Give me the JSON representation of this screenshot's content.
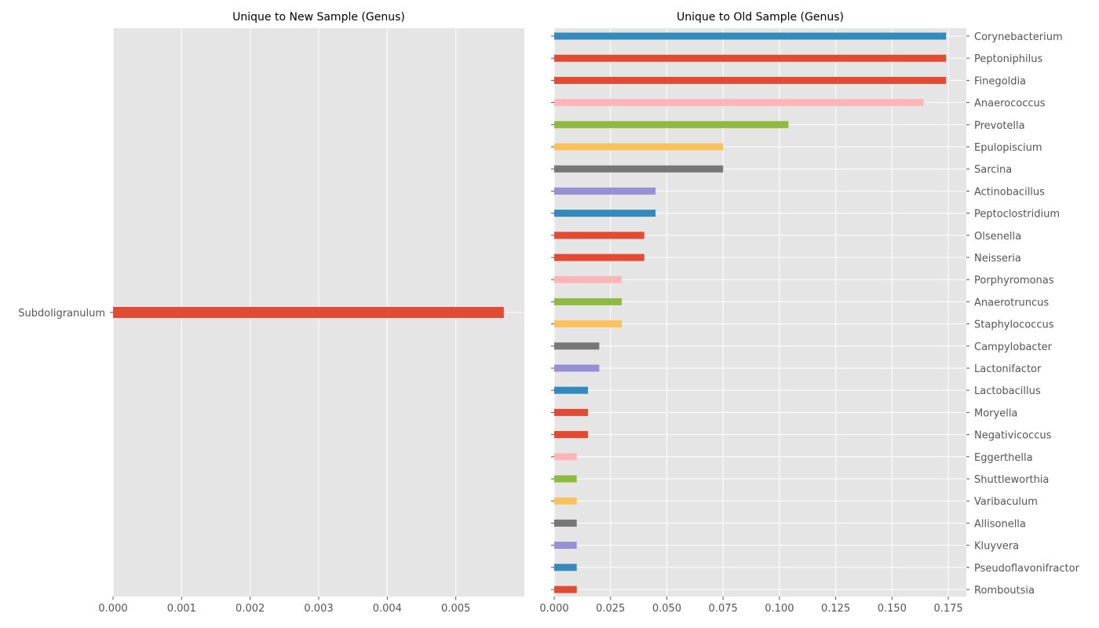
{
  "colors": {
    "panel_bg": "#E5E5E5",
    "grid": "#FFFFFF",
    "tick_text": "#555555",
    "palette": [
      "#E24A33",
      "#348ABD",
      "#988ED5",
      "#777777",
      "#FBC15E",
      "#8EBA42",
      "#FFB5B8"
    ]
  },
  "chart_data": [
    {
      "type": "bar",
      "orientation": "horizontal",
      "title": "Unique to New Sample (Genus)",
      "xlabel": "",
      "ylabel": "",
      "xlim": [
        0,
        0.006
      ],
      "xticks": [
        "0.000",
        "0.001",
        "0.002",
        "0.003",
        "0.004",
        "0.005"
      ],
      "ytick_side": "left",
      "grid": true,
      "categories": [
        "Subdoligranulum"
      ],
      "values": [
        0.0057
      ],
      "bar_colors": [
        "#E24A33"
      ]
    },
    {
      "type": "bar",
      "orientation": "horizontal",
      "title": "Unique to Old Sample (Genus)",
      "xlabel": "",
      "ylabel": "",
      "xlim": [
        0,
        0.183
      ],
      "xticks": [
        "0.000",
        "0.025",
        "0.050",
        "0.075",
        "0.100",
        "0.125",
        "0.150",
        "0.175"
      ],
      "ytick_side": "right",
      "grid": true,
      "categories": [
        "Corynebacterium",
        "Peptoniphilus",
        "Finegoldia",
        "Anaerococcus",
        "Prevotella",
        "Epulopiscium",
        "Sarcina",
        "Actinobacillus",
        "Peptoclostridium",
        "Olsenella",
        "Neisseria",
        "Porphyromonas",
        "Anaerotruncus",
        "Staphylococcus",
        "Campylobacter",
        "Lactonifactor",
        "Lactobacillus",
        "Moryella",
        "Negativicoccus",
        "Eggerthella",
        "Shuttleworthia",
        "Varibaculum",
        "Allisonella",
        "Kluyvera",
        "Pseudoflavonifractor",
        "Romboutsia"
      ],
      "values": [
        0.174,
        0.174,
        0.174,
        0.164,
        0.104,
        0.075,
        0.075,
        0.045,
        0.045,
        0.04,
        0.04,
        0.03,
        0.03,
        0.03,
        0.02,
        0.02,
        0.015,
        0.015,
        0.015,
        0.01,
        0.01,
        0.01,
        0.01,
        0.01,
        0.01,
        0.01
      ],
      "bar_colors": [
        "#348ABD",
        "#E24A33",
        "#E24A33",
        "#FFB5B8",
        "#8EBA42",
        "#FBC15E",
        "#777777",
        "#988ED5",
        "#348ABD",
        "#E24A33",
        "#E24A33",
        "#FFB5B8",
        "#8EBA42",
        "#FBC15E",
        "#777777",
        "#988ED5",
        "#348ABD",
        "#E24A33",
        "#E24A33",
        "#FFB5B8",
        "#8EBA42",
        "#FBC15E",
        "#777777",
        "#988ED5",
        "#348ABD",
        "#E24A33"
      ]
    }
  ]
}
